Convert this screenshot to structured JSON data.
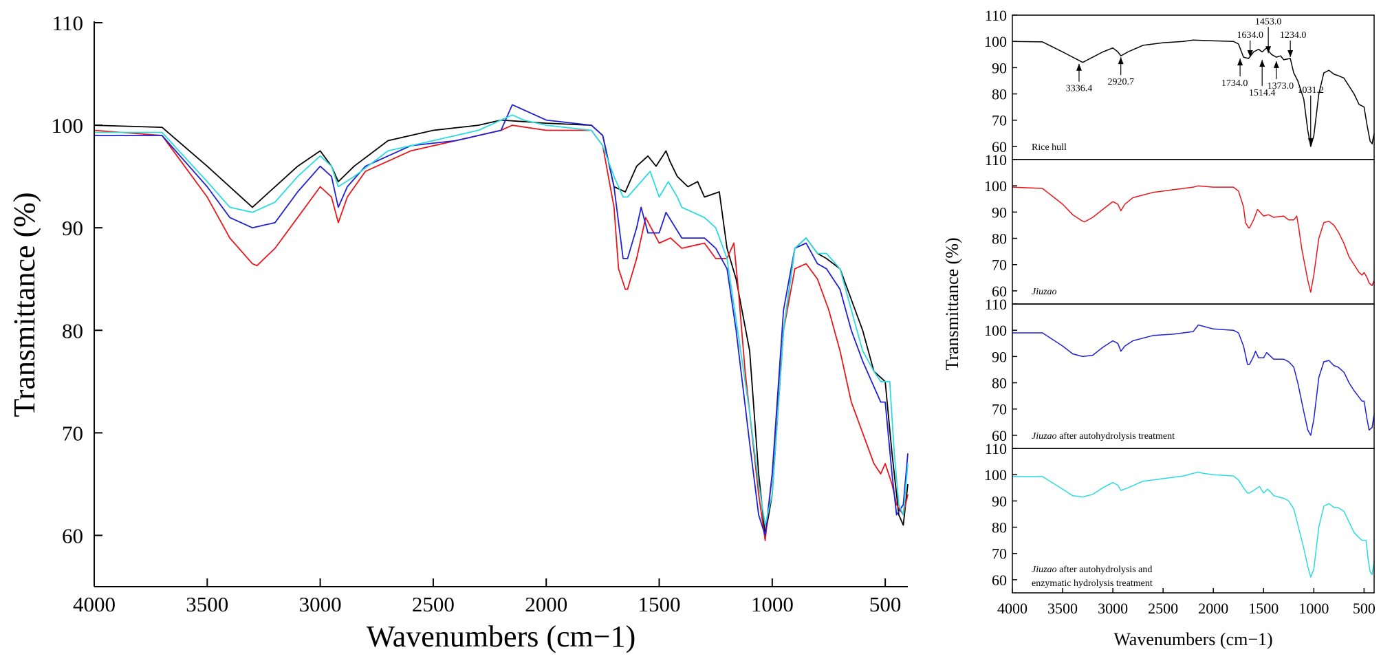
{
  "chart_data": [
    {
      "type": "line",
      "title": "",
      "xlabel": "Wavenumbers (cm−1)",
      "ylabel": "Transmittance (%)",
      "xlim": [
        4000,
        400
      ],
      "ylim": [
        55,
        110
      ],
      "x_ticks": [
        4000,
        3500,
        3000,
        2500,
        2000,
        1500,
        1000,
        500
      ],
      "y_ticks": [
        60,
        70,
        80,
        90,
        100,
        110
      ],
      "series": [
        {
          "name": "Rice hull",
          "color": "#000000",
          "x": [
            4000,
            3700,
            3500,
            3300,
            3100,
            3000,
            2950,
            2920,
            2850,
            2700,
            2500,
            2300,
            2200,
            2000,
            1800,
            1750,
            1700,
            1650,
            1600,
            1550,
            1514,
            1470,
            1453,
            1420,
            1373,
            1330,
            1300,
            1234,
            1200,
            1160,
            1100,
            1060,
            1031,
            1000,
            950,
            900,
            850,
            800,
            760,
            700,
            650,
            600,
            550,
            500,
            470,
            440,
            420,
            400
          ],
          "y": [
            100,
            99.8,
            96,
            92,
            96,
            97.5,
            96,
            94.5,
            96,
            98.5,
            99.5,
            100,
            100.5,
            100.2,
            100,
            99,
            94,
            93.5,
            96,
            97,
            96,
            97.5,
            96.5,
            95,
            94,
            94.5,
            93,
            93.5,
            88,
            85,
            78,
            66,
            60,
            64,
            80,
            88,
            89,
            87.5,
            87,
            86,
            83,
            80,
            76,
            75,
            68,
            62,
            61,
            65
          ]
        },
        {
          "name": "Jiuzao",
          "color": "#e8161b",
          "x": [
            4000,
            3700,
            3500,
            3400,
            3300,
            3280,
            3200,
            3100,
            3000,
            2950,
            2920,
            2880,
            2800,
            2600,
            2400,
            2200,
            2150,
            2000,
            1800,
            1750,
            1700,
            1680,
            1650,
            1640,
            1600,
            1560,
            1500,
            1450,
            1400,
            1300,
            1250,
            1200,
            1170,
            1150,
            1120,
            1100,
            1060,
            1031,
            1000,
            950,
            900,
            850,
            800,
            750,
            700,
            650,
            600,
            550,
            520,
            500,
            470,
            450,
            420,
            400
          ],
          "y": [
            99.5,
            99,
            93,
            89,
            86.5,
            86.3,
            88,
            91,
            94,
            93,
            90.5,
            93,
            95.5,
            97.5,
            98.5,
            99.5,
            100,
            99.5,
            99.5,
            98,
            92,
            86,
            84,
            84,
            87,
            91,
            88.5,
            89,
            88,
            88.5,
            87,
            87,
            88.5,
            84,
            76,
            72,
            64,
            59.5,
            66,
            80,
            86,
            86.5,
            85,
            82,
            78,
            73,
            70,
            67,
            66,
            67,
            65,
            63,
            62,
            64
          ]
        },
        {
          "name": "Jiuzao after autohydrolysis treatment",
          "color": "#1f1fd3",
          "x": [
            4000,
            3700,
            3500,
            3400,
            3300,
            3200,
            3100,
            3000,
            2950,
            2920,
            2880,
            2800,
            2600,
            2400,
            2200,
            2160,
            2150,
            2000,
            1800,
            1750,
            1700,
            1660,
            1640,
            1600,
            1580,
            1550,
            1500,
            1470,
            1400,
            1300,
            1250,
            1200,
            1160,
            1100,
            1060,
            1031,
            1000,
            950,
            900,
            850,
            800,
            760,
            700,
            650,
            600,
            560,
            520,
            500,
            470,
            450,
            420,
            400
          ],
          "y": [
            99,
            99,
            94,
            91,
            90,
            90.5,
            93.5,
            96,
            95,
            92,
            94,
            96,
            98,
            98.5,
            99.5,
            101.5,
            102,
            100.5,
            100,
            99,
            94,
            87,
            87,
            90,
            92,
            89.5,
            89.5,
            91.5,
            89,
            89,
            88,
            86,
            80,
            69,
            62,
            60,
            66,
            82,
            88,
            88.5,
            86.5,
            86,
            84,
            80,
            77,
            75,
            73,
            73,
            66,
            62,
            63,
            68
          ]
        },
        {
          "name": "Jiuzao after autohydrolysis and enzymatic hydrolysis treatment",
          "color": "#2adbe0",
          "x": [
            4000,
            3700,
            3500,
            3400,
            3300,
            3200,
            3100,
            3000,
            2950,
            2920,
            2850,
            2700,
            2500,
            2300,
            2200,
            2150,
            2100,
            2000,
            1800,
            1750,
            1700,
            1660,
            1640,
            1600,
            1560,
            1540,
            1500,
            1460,
            1420,
            1400,
            1300,
            1250,
            1200,
            1160,
            1100,
            1060,
            1031,
            1000,
            950,
            900,
            850,
            800,
            760,
            700,
            650,
            600,
            550,
            520,
            500,
            480,
            460,
            440,
            420,
            400
          ],
          "y": [
            99.3,
            99.3,
            94.5,
            92,
            91.5,
            92.5,
            95,
            97,
            96,
            94,
            95,
            97.5,
            98.5,
            99.5,
            100.5,
            101,
            100.5,
            100,
            99.5,
            98,
            95,
            93,
            93,
            94,
            95,
            95.5,
            93,
            94.5,
            93,
            92,
            91,
            90,
            87,
            81,
            72,
            65,
            61,
            64,
            80,
            88,
            89,
            87.5,
            87.5,
            86,
            82,
            78,
            76,
            75,
            75,
            75,
            68,
            63,
            62,
            67
          ]
        }
      ]
    },
    {
      "type": "line",
      "title": "",
      "xlabel": "Wavenumbers (cm−1)",
      "ylabel": "Transmittance (%)",
      "xlim": [
        4000,
        400
      ],
      "ylim": [
        55,
        110
      ],
      "x_ticks": [
        4000,
        3500,
        3000,
        2500,
        2000,
        1500,
        1000,
        500
      ],
      "y_ticks": [
        60,
        70,
        80,
        90,
        100,
        110
      ],
      "panels": [
        {
          "label_italic": "",
          "label_rest": "Rice hull",
          "series_index": 0,
          "annotations": [
            {
              "text": "3336.4",
              "x": 3336.4,
              "y": 92,
              "dir": "up"
            },
            {
              "text": "2920.7",
              "x": 2920.7,
              "y": 94.5,
              "dir": "up"
            },
            {
              "text": "1734.0",
              "x": 1734.0,
              "y": 94,
              "dir": "up"
            },
            {
              "text": "1634.0",
              "x": 1634.0,
              "y": 93.5,
              "dir": "down"
            },
            {
              "text": "1514.4",
              "x": 1514.4,
              "y": 93.5,
              "dir": "up"
            },
            {
              "text": "1453.0",
              "x": 1453.0,
              "y": 95,
              "dir": "down"
            },
            {
              "text": "1373.0",
              "x": 1373.0,
              "y": 93,
              "dir": "up"
            },
            {
              "text": "1234.0",
              "x": 1234.0,
              "y": 93.5,
              "dir": "down"
            },
            {
              "text": "1031.2",
              "x": 1031.2,
              "y": 60,
              "dir": "down"
            }
          ]
        },
        {
          "label_italic": "Jiuzao",
          "label_rest": "",
          "series_index": 1,
          "annotations": []
        },
        {
          "label_italic": "Jiuzao",
          "label_rest": " after autohydrolysis treatment",
          "series_index": 2,
          "annotations": []
        },
        {
          "label_italic": "Jiuzao",
          "label_rest": " after autohydrolysis and",
          "label_line2": "enzymatic hydrolysis treatment",
          "series_index": 3,
          "annotations": []
        }
      ]
    }
  ]
}
